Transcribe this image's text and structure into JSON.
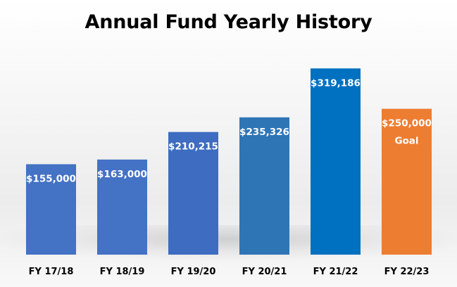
{
  "chart_data": {
    "type": "bar",
    "title": "Annual Fund Yearly History",
    "categories": [
      "FY 17/18",
      "FY 18/19",
      "FY 19/20",
      "FY 20/21",
      "FY 21/22",
      "FY 22/23"
    ],
    "series": [
      {
        "values": [
          155000,
          163000,
          210215,
          235326,
          319186,
          250000
        ]
      }
    ],
    "data_labels": [
      "$155,000",
      "$163,000",
      "$210,215",
      "$235,326",
      "$319,186",
      "$250,000"
    ],
    "annotations": [
      "",
      "",
      "",
      "",
      "",
      "Goal"
    ],
    "bar_colors": [
      "#4472C4",
      "#4472C4",
      "#3E6CC0",
      "#2E75B6",
      "#0070C0",
      "#ED7D31"
    ],
    "ylim": [
      0,
      340000
    ],
    "xlabel": "",
    "ylabel": "",
    "grid": false,
    "legend": "none"
  }
}
